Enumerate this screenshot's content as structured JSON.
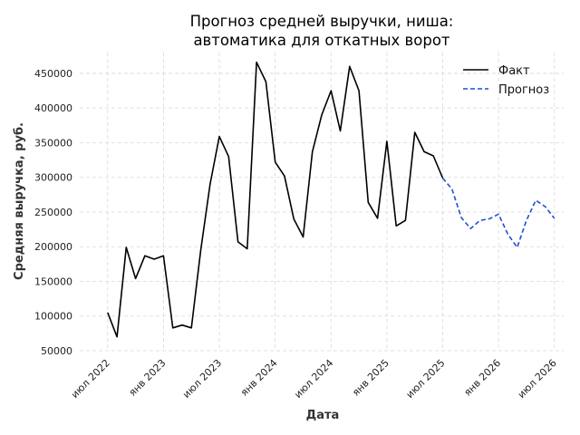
{
  "chart_data": {
    "type": "line",
    "title": [
      "Прогноз средней выручки, ниша:",
      "автоматика для откатных ворот"
    ],
    "xlabel": "Дата",
    "ylabel": "Средняя выручка, руб.",
    "ylim": [
      50000,
      480000
    ],
    "yticks": [
      50000,
      100000,
      150000,
      200000,
      250000,
      300000,
      350000,
      400000,
      450000
    ],
    "ytick_labels": [
      "50000",
      "100000",
      "150000",
      "200000",
      "250000",
      "300000",
      "350000",
      "400000",
      "450000"
    ],
    "xlim": [
      "2022-04",
      "2026-08"
    ],
    "xticks": [
      "2022-07",
      "2023-01",
      "2023-07",
      "2024-01",
      "2024-07",
      "2025-01",
      "2025-07",
      "2026-01",
      "2026-07"
    ],
    "xtick_labels": [
      "июл 2022",
      "янв 2023",
      "июл 2023",
      "янв 2024",
      "июл 2024",
      "янв 2025",
      "июл 2025",
      "янв 2026",
      "июл 2026"
    ],
    "grid": true,
    "legend_position": "top-right",
    "series": [
      {
        "name": "Факт",
        "color": "#000000",
        "style": "solid",
        "x": [
          "2022-07",
          "2022-08",
          "2022-09",
          "2022-10",
          "2022-11",
          "2022-12",
          "2023-01",
          "2023-02",
          "2023-03",
          "2023-04",
          "2023-05",
          "2023-06",
          "2023-07",
          "2023-08",
          "2023-09",
          "2023-10",
          "2023-11",
          "2023-12",
          "2024-01",
          "2024-02",
          "2024-03",
          "2024-04",
          "2024-05",
          "2024-06",
          "2024-07",
          "2024-08",
          "2024-09",
          "2024-10",
          "2024-11",
          "2024-12",
          "2025-01",
          "2025-02",
          "2025-03",
          "2025-04",
          "2025-05",
          "2025-06",
          "2025-07"
        ],
        "y": [
          105000,
          70000,
          199000,
          154000,
          187000,
          182000,
          187000,
          83000,
          87000,
          83000,
          195000,
          290000,
          359000,
          330000,
          207000,
          197000,
          466000,
          438000,
          322000,
          302000,
          240000,
          214000,
          337000,
          390000,
          425000,
          367000,
          460000,
          425000,
          264000,
          241000,
          352000,
          230000,
          238000,
          365000,
          337000,
          331000,
          299000
        ]
      },
      {
        "name": "Прогноз",
        "color": "#1f4fd1",
        "style": "dashed",
        "x": [
          "2025-07",
          "2025-08",
          "2025-09",
          "2025-10",
          "2025-11",
          "2025-12",
          "2026-01",
          "2026-02",
          "2026-03",
          "2026-04",
          "2026-05",
          "2026-06",
          "2026-07"
        ],
        "y": [
          299000,
          283000,
          242000,
          226000,
          238000,
          240000,
          247000,
          218000,
          199000,
          238000,
          267000,
          258000,
          241000
        ]
      }
    ]
  }
}
